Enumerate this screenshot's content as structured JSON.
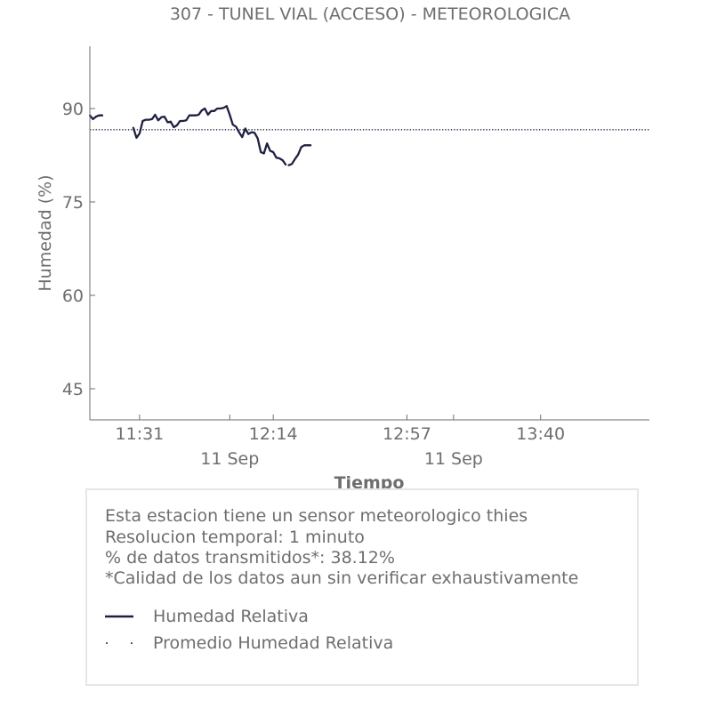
{
  "chart_data": {
    "type": "line",
    "title": "307 - TUNEL VIAL (ACCESO) - METEOROLOGICA",
    "xlabel": "Tiempo",
    "ylabel": "Humedad (%)",
    "x_ticks": [
      {
        "minute": 91,
        "label": "11:31",
        "date": ""
      },
      {
        "minute": 134,
        "label": "12:14",
        "date": "11 Sep"
      },
      {
        "minute": 177,
        "label": "12:57",
        "date": ""
      },
      {
        "minute": 220,
        "label": "13:40",
        "date": "11 Sep"
      }
    ],
    "minor_ticks_minutes": [
      120,
      192
    ],
    "x_range": [
      75,
      255
    ],
    "y_ticks": [
      45,
      60,
      75,
      90
    ],
    "ylim": [
      40,
      100
    ],
    "grid": false,
    "series": [
      {
        "name": "Humedad Relativa",
        "style": "solid",
        "color": "#1f2041",
        "segments": [
          {
            "x": [
              75,
              76,
              77,
              78,
              79
            ],
            "y": [
              88.9,
              88.3,
              88.7,
              88.9,
              88.9
            ]
          },
          {
            "x": [
              89,
              90,
              91,
              92,
              93,
              94,
              95,
              96,
              97,
              98,
              99,
              100,
              101,
              102,
              103,
              104,
              105,
              106,
              107,
              108,
              109,
              110,
              111,
              112,
              113,
              114,
              115,
              116,
              117,
              118,
              119,
              120,
              121,
              122,
              123,
              124,
              125,
              126,
              127,
              128,
              129,
              130,
              131,
              132,
              133,
              134,
              135,
              136,
              137,
              138
            ],
            "y": [
              86.9,
              85.3,
              86.0,
              88.0,
              88.2,
              88.2,
              88.3,
              89.0,
              88.1,
              88.6,
              88.7,
              87.8,
              87.9,
              87.0,
              87.3,
              88.0,
              88.0,
              88.1,
              88.9,
              88.9,
              88.9,
              89.0,
              89.7,
              90.0,
              89.0,
              89.6,
              89.6,
              90.0,
              90.0,
              90.1,
              90.4,
              89.0,
              87.4,
              87.1,
              86.2,
              85.4,
              86.8,
              85.9,
              86.2,
              86.1,
              85.2,
              83.0,
              82.8,
              84.4,
              83.2,
              83.0,
              82.1,
              82.0,
              81.7,
              81.0
            ]
          },
          {
            "x": [
              139,
              140,
              141,
              142,
              143,
              144,
              145,
              146
            ],
            "y": [
              80.9,
              81.1,
              81.9,
              82.6,
              83.8,
              84.1,
              84.1,
              84.1
            ]
          }
        ]
      },
      {
        "name": "Promedio Humedad Relativa",
        "style": "dotted",
        "color": "#1f2041",
        "value": 86.6
      }
    ],
    "legend_placement": "bottom"
  },
  "info": {
    "lines": [
      "Esta estacion tiene un sensor meteorologico thies",
      "Resolucion temporal: 1 minuto",
      "% de datos transmitidos*: 38.12%",
      "*Calidad de los datos aun sin verificar exhaustivamente"
    ]
  },
  "legend": {
    "items": [
      {
        "label": "Humedad Relativa",
        "style": "solid"
      },
      {
        "label": "Promedio Humedad Relativa",
        "style": "dotted"
      }
    ]
  }
}
